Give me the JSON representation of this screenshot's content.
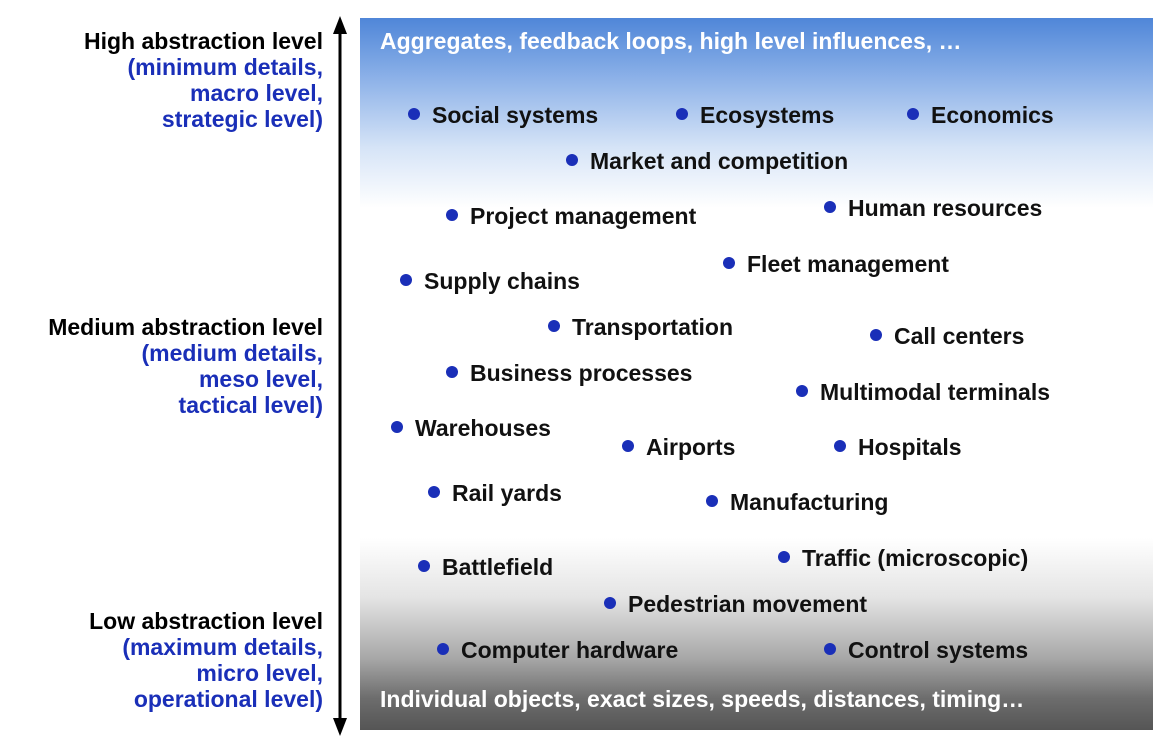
{
  "left_labels": {
    "high": {
      "head": "High abstraction level",
      "lines": [
        "(minimum details,",
        "macro level,",
        "strategic level)"
      ]
    },
    "medium": {
      "head": "Medium abstraction level",
      "lines": [
        "(medium details,",
        "meso level,",
        "tactical level)"
      ]
    },
    "low": {
      "head": "Low abstraction level",
      "lines": [
        "(maximum details,",
        "micro level,",
        "operational level)"
      ]
    }
  },
  "panel": {
    "top_text": "Aggregates,  feedback loops, high level influences, …",
    "bottom_text": "Individual objects, exact sizes, speeds, distances, timing…"
  },
  "items": [
    "Social systems",
    "Ecosystems",
    "Economics",
    "Market and competition",
    "Project management",
    "Human resources",
    "Supply chains",
    "Fleet management",
    "Transportation",
    "Call centers",
    "Business processes",
    "Multimodal terminals",
    "Warehouses",
    "Airports",
    "Hospitals",
    "Rail yards",
    "Manufacturing",
    "Battlefield",
    "Traffic (microscopic)",
    "Pedestrian movement",
    "Computer hardware",
    "Control systems"
  ],
  "colors": {
    "accent_blue": "#1a2fb8",
    "panel_top": "#4f86d8",
    "panel_bottom": "#555555"
  }
}
